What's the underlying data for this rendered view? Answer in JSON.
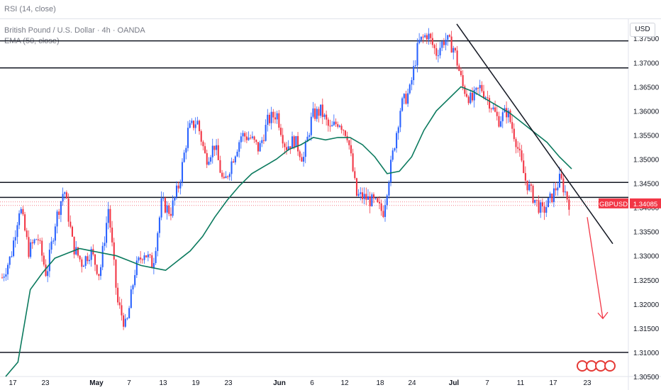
{
  "indicator_pane": {
    "label": "RSI (14, close)"
  },
  "legend": {
    "symbol": "British Pound / U.S. Dollar · 4h · OANDA",
    "ema": "EMA (50, close)"
  },
  "currency_button": "USD",
  "price_tag": {
    "label": "GBPUSD",
    "value": "1.34085"
  },
  "colors": {
    "up": "#2962ff",
    "down": "#f23645",
    "ema": "#0b7a5e",
    "lines": "#131722",
    "arrow": "#f23645",
    "price_tag": "#f23645"
  },
  "chart_data": {
    "type": "candlestick",
    "ylim": [
      1.305,
      1.379
    ],
    "y_ticks": [
      "1.37500",
      "1.37000",
      "1.36500",
      "1.36000",
      "1.35500",
      "1.35000",
      "1.34500",
      "1.34000",
      "1.33500",
      "1.33000",
      "1.32500",
      "1.32000",
      "1.31500",
      "1.31000",
      "1.30500"
    ],
    "x_ticks": [
      "17",
      "23",
      "May",
      "7",
      "13",
      "19",
      "23",
      "Jun",
      "6",
      "12",
      "18",
      "24",
      "Jul",
      "7",
      "11",
      "17",
      "23"
    ],
    "ohlc_path": [
      [
        "17",
        1.3255
      ],
      [
        "21",
        1.33
      ],
      [
        "22",
        1.3405
      ],
      [
        "23",
        1.331
      ],
      [
        "25",
        1.334
      ],
      [
        "28",
        1.326
      ],
      [
        "May",
        1.337
      ],
      [
        "May 1",
        1.344
      ],
      [
        "2",
        1.332
      ],
      [
        "5",
        1.3285
      ],
      [
        "7",
        1.331
      ],
      [
        "8",
        1.326
      ],
      [
        "9",
        1.34
      ],
      [
        "12",
        1.3205
      ],
      [
        "13",
        1.315
      ],
      [
        "14",
        1.327
      ],
      [
        "15",
        1.331
      ],
      [
        "16",
        1.328
      ],
      [
        "19",
        1.341
      ],
      [
        "20",
        1.339
      ],
      [
        "21",
        1.345
      ],
      [
        "22",
        1.356
      ],
      [
        "23",
        1.358
      ],
      [
        "26",
        1.35
      ],
      [
        "27",
        1.353
      ],
      [
        "28",
        1.3445
      ],
      [
        "29",
        1.35
      ],
      [
        "30",
        1.355
      ],
      [
        "Jun",
        1.3545
      ],
      [
        "3",
        1.352
      ],
      [
        "4",
        1.358
      ],
      [
        "5",
        1.3595
      ],
      [
        "6",
        1.3525
      ],
      [
        "9",
        1.354
      ],
      [
        "10",
        1.35
      ],
      [
        "11",
        1.359
      ],
      [
        "12",
        1.36
      ],
      [
        "13",
        1.356
      ],
      [
        "16",
        1.358
      ],
      [
        "17",
        1.355
      ],
      [
        "18",
        1.3425
      ],
      [
        "19",
        1.342
      ],
      [
        "20",
        1.341
      ],
      [
        "22",
        1.339
      ],
      [
        "23",
        1.35
      ],
      [
        "24",
        1.361
      ],
      [
        "25",
        1.364
      ],
      [
        "26",
        1.374
      ],
      [
        "27",
        1.376
      ],
      [
        "30",
        1.372
      ],
      [
        "Jul",
        1.375
      ],
      [
        "2",
        1.373
      ],
      [
        "3",
        1.365
      ],
      [
        "4",
        1.362
      ],
      [
        "7",
        1.365
      ],
      [
        "8",
        1.362
      ],
      [
        "9",
        1.358
      ],
      [
        "10",
        1.36
      ],
      [
        "11",
        1.354
      ],
      [
        "14",
        1.346
      ],
      [
        "15",
        1.342
      ],
      [
        "16",
        1.339
      ],
      [
        "17",
        1.342
      ],
      [
        "18",
        1.346
      ],
      [
        "18b",
        1.341
      ]
    ],
    "ema_50": [
      1.305,
      1.308,
      1.323,
      1.3265,
      1.3295,
      1.3305,
      1.3315,
      1.331,
      1.3305,
      1.33,
      1.329,
      1.328,
      1.3275,
      1.327,
      1.329,
      1.331,
      1.334,
      1.338,
      1.3415,
      1.3445,
      1.347,
      1.3485,
      1.35,
      1.352,
      1.353,
      1.3545,
      1.354,
      1.3545,
      1.3545,
      1.353,
      1.3505,
      1.347,
      1.3475,
      1.3505,
      1.356,
      1.36,
      1.3625,
      1.365,
      1.364,
      1.3625,
      1.361,
      1.3595,
      1.3575,
      1.3555,
      1.3535,
      1.3505,
      1.348
    ],
    "horizontal_levels": [
      1.3745,
      1.3689,
      1.3452,
      1.3421,
      1.31
    ],
    "trendline": {
      "from": [
        "Jun 30",
        1.378
      ],
      "to": [
        "Jul 25",
        1.3325
      ]
    },
    "projection_arrow": {
      "from": 1.338,
      "to": 1.317
    },
    "last_price": 1.34085
  }
}
